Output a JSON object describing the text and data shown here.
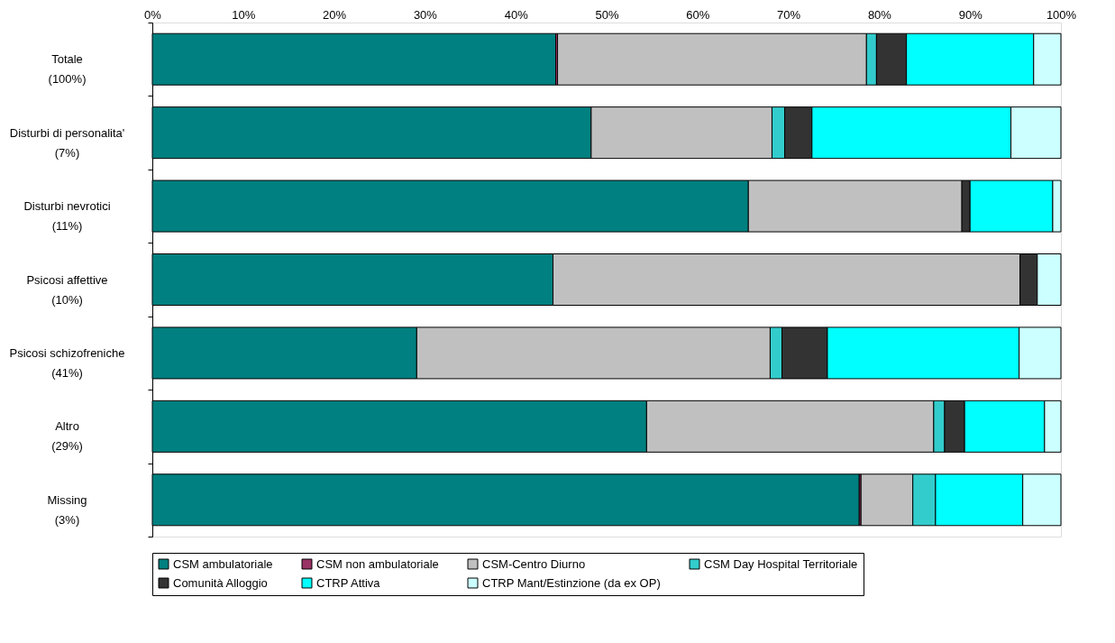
{
  "chart_data": {
    "type": "bar",
    "orientation": "horizontal",
    "stacked": true,
    "categories": [
      "Totale\n(100%)",
      "Disturbi di personalita'\n(7%)",
      "Disturbi nevrotici\n(11%)",
      "Psicosi affettive\n(10%)",
      "Psicosi schizofreniche\n(41%)",
      "Altro\n(29%)",
      "Missing\n(3%)"
    ],
    "series": [
      {
        "name": "CSM ambulatoriale",
        "color": "#008080",
        "values": [
          44.4,
          48.3,
          65.6,
          44.1,
          29.1,
          54.4,
          77.8
        ]
      },
      {
        "name": "CSM non ambulatoriale",
        "color": "#993366",
        "values": [
          0.2,
          null,
          null,
          null,
          null,
          null,
          0.2
        ]
      },
      {
        "name": "CSM-Centro Diurno",
        "color": "#c0c0c0",
        "values": [
          34.0,
          19.9,
          23.5,
          51.4,
          38.9,
          31.6,
          5.7
        ]
      },
      {
        "name": "CSM Day Hospital Territoriale",
        "color": "#33cccc",
        "values": [
          1.1,
          1.4,
          null,
          null,
          1.3,
          1.2,
          2.5
        ]
      },
      {
        "name": "Comunità Alloggio",
        "color": "#333333",
        "values": [
          3.3,
          3.0,
          0.9,
          1.9,
          5.0,
          2.2,
          null
        ]
      },
      {
        "name": "CTRP Attiva",
        "color": "#00ffff",
        "values": [
          14.0,
          21.9,
          9.1,
          null,
          21.1,
          8.8,
          9.6
        ]
      },
      {
        "name": "CTRP Mant/Estinzione (da ex OP)",
        "color": "#ccffff",
        "values": [
          3.0,
          5.5,
          0.9,
          2.6,
          4.6,
          1.8,
          4.2
        ]
      }
    ],
    "xlim": [
      0,
      100
    ],
    "xticks": [
      {
        "value": 0,
        "label": "0%"
      },
      {
        "value": 10,
        "label": "10%"
      },
      {
        "value": 20,
        "label": "20%"
      },
      {
        "value": 30,
        "label": "30%"
      },
      {
        "value": 40,
        "label": "40%"
      },
      {
        "value": 50,
        "label": "50%"
      },
      {
        "value": 60,
        "label": "60%"
      },
      {
        "value": 70,
        "label": "70%"
      },
      {
        "value": 80,
        "label": "80%"
      },
      {
        "value": 90,
        "label": "90%"
      },
      {
        "value": 100,
        "label": "100%"
      }
    ],
    "grid": false,
    "legend": "bottom"
  }
}
